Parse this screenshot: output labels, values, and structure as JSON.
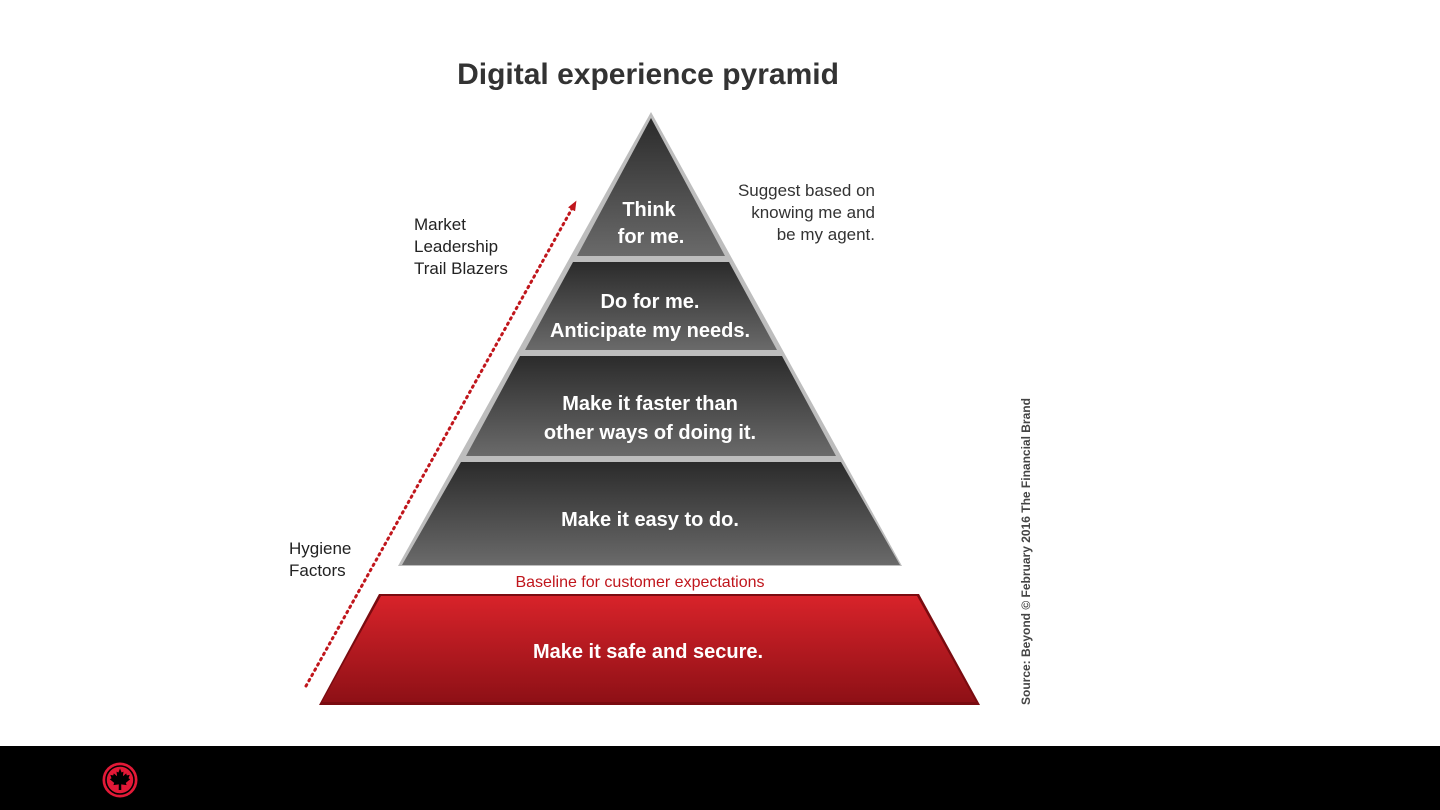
{
  "title": "Digital experience pyramid",
  "tiers": [
    {
      "lines": [
        "Think",
        "for me."
      ]
    },
    {
      "lines": [
        "Do for me.",
        "Anticipate my needs."
      ]
    },
    {
      "lines": [
        "Make it faster than",
        "other ways of doing it."
      ]
    },
    {
      "lines": [
        "Make it easy to do."
      ]
    }
  ],
  "base_tier": {
    "label": "Make it safe and secure."
  },
  "baseline_label": "Baseline for customer expectations",
  "top_note": [
    "Suggest based on",
    "knowing me and",
    "be my agent."
  ],
  "market_label": [
    "Market",
    "Leadership",
    "Trail Blazers"
  ],
  "hygiene_label": [
    "Hygiene",
    "Factors"
  ],
  "source": "Source: Beyond © February 2016 The Financial Brand",
  "colors": {
    "tier_dark": "#2b2b2b",
    "tier_light": "#6a6a6a",
    "base_red": "#d8232a",
    "base_dark": "#8e1016",
    "arrow_red": "#c0161c"
  },
  "footer": {
    "logo_icon": "maple-leaf-roundel-icon"
  }
}
